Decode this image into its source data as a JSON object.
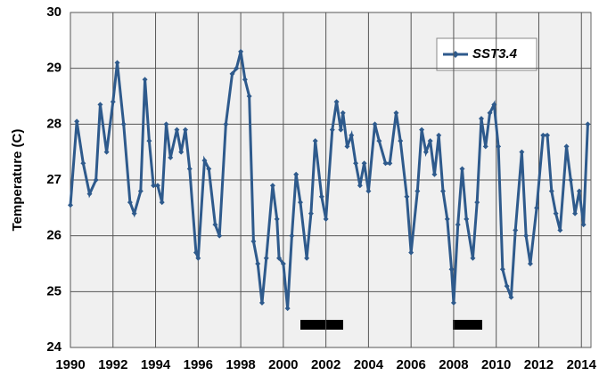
{
  "chart_data": {
    "type": "line",
    "y_label": "Temperature  (C)",
    "x": [
      1990.0,
      1990.3,
      1990.6,
      1990.9,
      1991.2,
      1991.4,
      1991.7,
      1992.0,
      1992.2,
      1992.5,
      1992.8,
      1993.0,
      1993.3,
      1993.5,
      1993.7,
      1993.9,
      1994.1,
      1994.3,
      1994.5,
      1994.7,
      1995.0,
      1995.2,
      1995.4,
      1995.6,
      1995.9,
      1996.0,
      1996.3,
      1996.5,
      1996.8,
      1997.0,
      1997.3,
      1997.6,
      1997.8,
      1998.0,
      1998.2,
      1998.4,
      1998.6,
      1998.8,
      1999.0,
      1999.2,
      1999.5,
      1999.7,
      1999.8,
      2000.0,
      2000.2,
      2000.4,
      2000.6,
      2000.8,
      2001.1,
      2001.3,
      2001.5,
      2001.8,
      2002.0,
      2002.3,
      2002.5,
      2002.7,
      2002.8,
      2003.0,
      2003.2,
      2003.4,
      2003.6,
      2003.8,
      2004.0,
      2004.3,
      2004.5,
      2004.8,
      2005.0,
      2005.3,
      2005.5,
      2005.8,
      2006.0,
      2006.3,
      2006.5,
      2006.7,
      2006.9,
      2007.1,
      2007.3,
      2007.5,
      2007.7,
      2007.9,
      2008.0,
      2008.2,
      2008.4,
      2008.6,
      2008.9,
      2009.1,
      2009.3,
      2009.5,
      2009.7,
      2009.9,
      2010.1,
      2010.3,
      2010.5,
      2010.7,
      2010.9,
      2011.2,
      2011.4,
      2011.6,
      2011.9,
      2012.2,
      2012.4,
      2012.6,
      2012.8,
      2013.0,
      2013.3,
      2013.5,
      2013.7,
      2013.9,
      2014.1,
      2014.3
    ],
    "series": [
      {
        "name": "SST3.4",
        "color": "#2e5a8c",
        "values": [
          26.55,
          28.05,
          27.3,
          26.75,
          27.0,
          28.35,
          27.5,
          28.4,
          29.1,
          28.0,
          26.6,
          26.4,
          26.8,
          28.8,
          27.7,
          26.9,
          26.9,
          26.6,
          28.0,
          27.4,
          27.9,
          27.5,
          27.9,
          27.2,
          25.7,
          25.6,
          27.35,
          27.2,
          26.2,
          26.0,
          28.0,
          28.9,
          29.0,
          29.3,
          28.8,
          28.5,
          25.9,
          25.5,
          24.8,
          25.6,
          26.9,
          26.3,
          25.6,
          25.5,
          24.7,
          26.0,
          27.1,
          26.6,
          25.6,
          26.4,
          27.7,
          26.7,
          26.3,
          27.9,
          28.4,
          27.9,
          28.2,
          27.6,
          27.8,
          27.3,
          26.9,
          27.3,
          26.8,
          28.0,
          27.7,
          27.3,
          27.3,
          28.2,
          27.7,
          26.7,
          25.7,
          26.8,
          27.9,
          27.5,
          27.7,
          27.1,
          27.8,
          26.8,
          26.3,
          25.4,
          24.8,
          26.2,
          27.2,
          26.3,
          25.6,
          26.6,
          28.1,
          27.6,
          28.2,
          28.35,
          27.6,
          25.4,
          25.1,
          24.9,
          26.1,
          27.5,
          26.0,
          25.5,
          26.5,
          27.8,
          27.8,
          26.8,
          26.4,
          26.1,
          27.6,
          27.0,
          26.4,
          26.8,
          26.2,
          28.0
        ]
      }
    ],
    "xlim": [
      1990,
      2014.45
    ],
    "xticks": [
      1990,
      1992,
      1994,
      1996,
      1998,
      2000,
      2002,
      2004,
      2006,
      2008,
      2010,
      2012,
      2014
    ],
    "ylim": [
      24,
      30
    ],
    "yticks": [
      24,
      25,
      26,
      27,
      28,
      29,
      30
    ],
    "grid": true,
    "legend": "upper right"
  }
}
